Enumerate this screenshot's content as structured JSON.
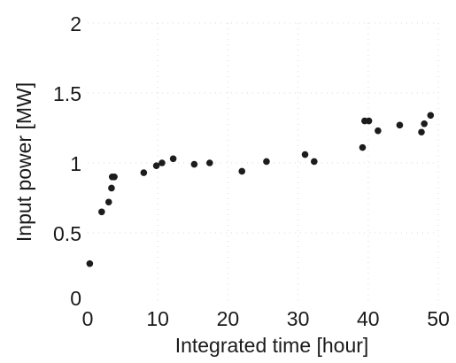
{
  "chart_data": {
    "type": "scatter",
    "xlabel": "Integrated time [hour]",
    "ylabel": "Input power [MW]",
    "xlim": [
      0,
      50
    ],
    "ylim": [
      0,
      2
    ],
    "x_ticks": [
      "0",
      "10",
      "20",
      "30",
      "40",
      "50"
    ],
    "y_ticks": [
      "0",
      "0.5",
      "1",
      "1.5",
      "2"
    ],
    "grid": true,
    "marker_color": "#1c1c1c",
    "series": [
      {
        "points": [
          [
            0.3,
            0.28
          ],
          [
            2.0,
            0.65
          ],
          [
            3.0,
            0.72
          ],
          [
            3.4,
            0.82
          ],
          [
            3.5,
            0.9
          ],
          [
            3.8,
            0.9
          ],
          [
            8.0,
            0.93
          ],
          [
            9.8,
            0.98
          ],
          [
            10.6,
            1.0
          ],
          [
            12.2,
            1.03
          ],
          [
            15.2,
            0.99
          ],
          [
            17.4,
            1.0
          ],
          [
            22.0,
            0.94
          ],
          [
            25.5,
            1.01
          ],
          [
            31.0,
            1.06
          ],
          [
            32.3,
            1.01
          ],
          [
            39.2,
            1.11
          ],
          [
            39.5,
            1.3
          ],
          [
            40.1,
            1.3
          ],
          [
            41.4,
            1.23
          ],
          [
            44.5,
            1.27
          ],
          [
            47.6,
            1.22
          ],
          [
            48.0,
            1.28
          ],
          [
            48.9,
            1.34
          ]
        ]
      }
    ]
  }
}
